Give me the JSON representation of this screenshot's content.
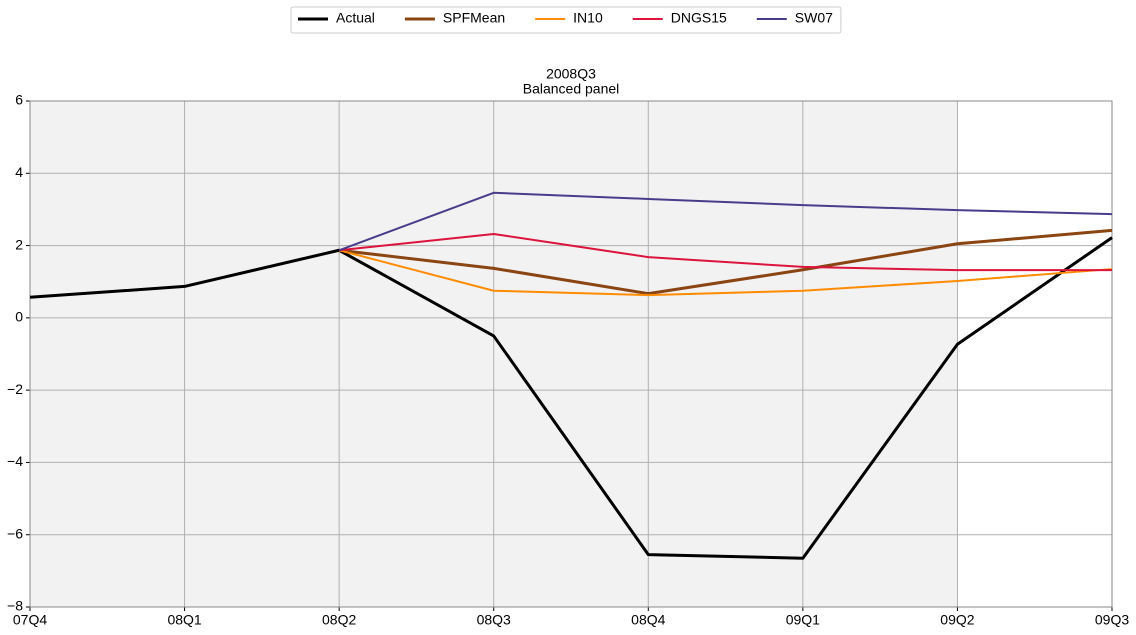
{
  "chart_data": {
    "type": "line",
    "title": "2008Q3",
    "subtitle": "Balanced panel",
    "categories": [
      "07Q4",
      "08Q1",
      "08Q2",
      "08Q3",
      "08Q4",
      "09Q1",
      "09Q2",
      "09Q3"
    ],
    "series": [
      {
        "name": "Actual",
        "color": "#000000",
        "width": 3,
        "values": [
          0.57,
          0.87,
          1.87,
          -0.5,
          -6.55,
          -6.65,
          -0.73,
          2.22
        ]
      },
      {
        "name": "SPFMean",
        "color": "#8b4513",
        "width": 3,
        "values": [
          null,
          null,
          1.87,
          1.37,
          0.67,
          1.33,
          2.05,
          2.42
        ]
      },
      {
        "name": "IN10",
        "color": "#ff8c00",
        "width": 2,
        "values": [
          null,
          null,
          1.87,
          0.75,
          0.63,
          0.75,
          1.02,
          1.35
        ]
      },
      {
        "name": "DNGS15",
        "color": "#dc143c",
        "width": 2,
        "values": [
          null,
          null,
          1.87,
          2.32,
          1.68,
          1.41,
          1.32,
          1.32
        ]
      },
      {
        "name": "SW07",
        "color": "#483d8b",
        "width": 2,
        "values": [
          null,
          null,
          1.87,
          3.46,
          3.29,
          3.12,
          2.98,
          2.87
        ]
      }
    ],
    "ylim": [
      -8,
      6
    ],
    "yticks": [
      {
        "value": -8,
        "label": "−8"
      },
      {
        "value": -6,
        "label": "−6"
      },
      {
        "value": -4,
        "label": "−4"
      },
      {
        "value": -2,
        "label": "−2"
      },
      0,
      2,
      4,
      6
    ],
    "grid": true,
    "legend": "top",
    "shade": {
      "from": "07Q4",
      "to": "09Q2",
      "color": "#f2f2f2"
    }
  }
}
